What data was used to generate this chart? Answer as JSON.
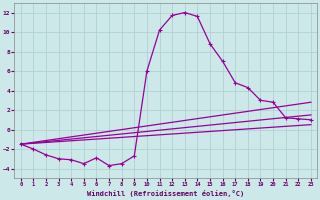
{
  "xlabel": "Windchill (Refroidissement éolien,°C)",
  "background_color": "#cce8e8",
  "grid_color": "#aacece",
  "line_color": "#990099",
  "xlim": [
    -0.5,
    23.5
  ],
  "ylim": [
    -5,
    13
  ],
  "yticks": [
    -4,
    -2,
    0,
    2,
    4,
    6,
    8,
    10,
    12
  ],
  "xticks": [
    0,
    1,
    2,
    3,
    4,
    5,
    6,
    7,
    8,
    9,
    10,
    11,
    12,
    13,
    14,
    15,
    16,
    17,
    18,
    19,
    20,
    21,
    22,
    23
  ],
  "line1_x": [
    0,
    1,
    2,
    3,
    4,
    5,
    6,
    7,
    8,
    9,
    10,
    11,
    12,
    13,
    14,
    15,
    16,
    17,
    18,
    19,
    20,
    21,
    22,
    23
  ],
  "line1_y": [
    -1.5,
    -2.0,
    -2.6,
    -3.0,
    -3.1,
    -3.5,
    -2.9,
    -3.7,
    -3.5,
    -2.7,
    6.0,
    10.2,
    11.7,
    12.0,
    11.6,
    8.8,
    7.0,
    4.8,
    4.3,
    3.0,
    2.8,
    1.2,
    1.1,
    1.0
  ],
  "line2_x": [
    0,
    23
  ],
  "line2_y": [
    -1.5,
    2.8
  ],
  "line3_x": [
    0,
    23
  ],
  "line3_y": [
    -1.5,
    1.5
  ],
  "line4_x": [
    0,
    23
  ],
  "line4_y": [
    -1.5,
    0.5
  ]
}
